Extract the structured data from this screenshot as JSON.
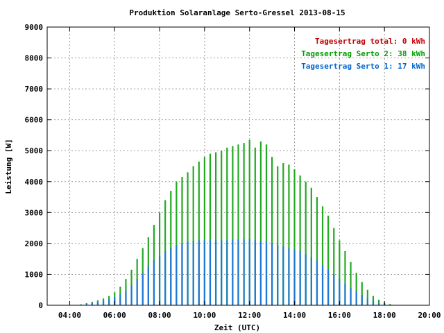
{
  "chart_data": {
    "type": "bar",
    "title": "Produktion Solaranlage Serto-Gressel 2013-08-15",
    "xlabel": "Zeit (UTC)",
    "ylabel": "Leistung [W]",
    "xlim": [
      3.0,
      20.0
    ],
    "ylim": [
      0,
      9000
    ],
    "x_ticks": [
      "04:00",
      "06:00",
      "08:00",
      "10:00",
      "12:00",
      "14:00",
      "16:00",
      "18:00",
      "20:00"
    ],
    "y_ticks": [
      "0",
      "1000",
      "2000",
      "3000",
      "4000",
      "5000",
      "6000",
      "7000",
      "8000",
      "9000"
    ],
    "grid": true,
    "legend_position": "top-right",
    "legend": [
      {
        "label": "Tagesertrag total: 0 kWh",
        "color": "#c00000"
      },
      {
        "label": "Tagesertrag Serto 2: 38 kWh",
        "color": "#00a000"
      },
      {
        "label": "Tagesertrag Serto 1: 17 kWh",
        "color": "#0066cc"
      }
    ],
    "series": [
      {
        "name": "Serto 2",
        "color": "#22aa22",
        "x": [
          4.5,
          4.75,
          5.0,
          5.25,
          5.5,
          5.75,
          6.0,
          6.25,
          6.5,
          6.75,
          7.0,
          7.25,
          7.5,
          7.75,
          8.0,
          8.25,
          8.5,
          8.75,
          9.0,
          9.25,
          9.5,
          9.75,
          10.0,
          10.25,
          10.5,
          10.75,
          11.0,
          11.25,
          11.5,
          11.75,
          12.0,
          12.25,
          12.5,
          12.75,
          13.0,
          13.25,
          13.5,
          13.75,
          14.0,
          14.25,
          14.5,
          14.75,
          15.0,
          15.25,
          15.5,
          15.75,
          16.0,
          16.25,
          16.5,
          16.75,
          17.0,
          17.25,
          17.5,
          17.75,
          18.0,
          18.25,
          18.5
        ],
        "values": [
          30,
          70,
          110,
          160,
          220,
          300,
          420,
          600,
          850,
          1150,
          1500,
          1850,
          2200,
          2600,
          3000,
          3400,
          3700,
          4000,
          4150,
          4300,
          4500,
          4650,
          4800,
          4900,
          4950,
          5000,
          5100,
          5150,
          5200,
          5250,
          5350,
          5100,
          5300,
          5200,
          4800,
          4500,
          4600,
          4550,
          4400,
          4200,
          4000,
          3800,
          3500,
          3200,
          2900,
          2500,
          2100,
          1750,
          1400,
          1050,
          750,
          500,
          300,
          180,
          90,
          40,
          10
        ]
      },
      {
        "name": "Serto 1",
        "color": "#1e78d6",
        "x": [
          4.5,
          4.75,
          5.0,
          5.25,
          5.5,
          5.75,
          6.0,
          6.25,
          6.5,
          6.75,
          7.0,
          7.25,
          7.5,
          7.75,
          8.0,
          8.25,
          8.5,
          8.75,
          9.0,
          9.25,
          9.5,
          9.75,
          10.0,
          10.25,
          10.5,
          10.75,
          11.0,
          11.25,
          11.5,
          11.75,
          12.0,
          12.25,
          12.5,
          12.75,
          13.0,
          13.25,
          13.5,
          13.75,
          14.0,
          14.25,
          14.5,
          14.75,
          15.0,
          15.25,
          15.5,
          15.75,
          16.0,
          16.25,
          16.5,
          16.75,
          17.0,
          17.25,
          17.5,
          17.75,
          18.0,
          18.25,
          18.5
        ],
        "values": [
          20,
          50,
          80,
          110,
          150,
          190,
          250,
          350,
          480,
          650,
          850,
          1050,
          1250,
          1450,
          1600,
          1750,
          1850,
          1950,
          2000,
          2050,
          2080,
          2100,
          2100,
          2100,
          2100,
          2100,
          2100,
          2120,
          2130,
          2130,
          2150,
          2100,
          2080,
          2050,
          2000,
          1950,
          1900,
          1850,
          1800,
          1750,
          1650,
          1550,
          1450,
          1300,
          1150,
          1000,
          850,
          700,
          550,
          450,
          330,
          220,
          150,
          80,
          40,
          15,
          5
        ]
      }
    ]
  }
}
